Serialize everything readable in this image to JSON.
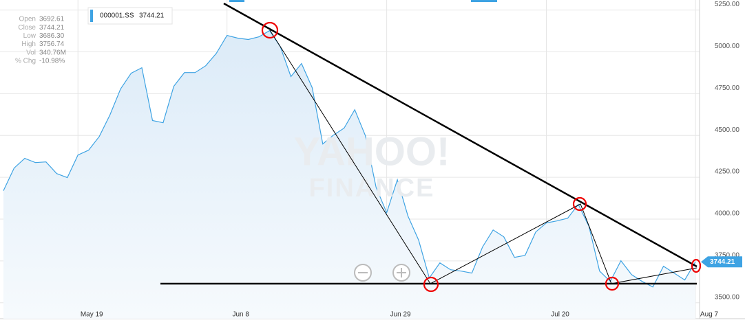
{
  "chart_data": {
    "type": "line",
    "quote": [
      {
        "label": "Open",
        "value": "3692.61"
      },
      {
        "label": "Close",
        "value": "3744.21"
      },
      {
        "label": "Low",
        "value": "3686.30"
      },
      {
        "label": "High",
        "value": "3756.74"
      },
      {
        "label": "Vol",
        "value": "340.76M"
      },
      {
        "label": "% Chg",
        "value": "-10.98%"
      }
    ],
    "watermark": [
      "YAHOO!",
      "FINANCE"
    ],
    "categories": [
      null,
      null,
      null,
      null,
      null,
      null,
      null,
      "May 19",
      null,
      null,
      null,
      null,
      null,
      null,
      null,
      null,
      null,
      null,
      null,
      null,
      null,
      "Jun 8",
      null,
      null,
      null,
      null,
      null,
      null,
      null,
      null,
      null,
      null,
      null,
      null,
      null,
      null,
      "Jun 29",
      null,
      null,
      null,
      null,
      null,
      null,
      null,
      null,
      null,
      null,
      null,
      null,
      null,
      null,
      "Jul 20",
      null,
      null,
      null,
      null,
      null,
      null,
      null,
      null,
      null,
      null,
      null,
      null,
      null,
      "Aug 7"
    ],
    "series": [
      {
        "name": "000001.SS",
        "color": "#3ea3e3",
        "values": [
          4170,
          4305,
          4363,
          4338,
          4342,
          4272,
          4248,
          4383,
          4412,
          4494,
          4622,
          4778,
          4872,
          4905,
          4589,
          4576,
          4794,
          4876,
          4876,
          4917,
          4991,
          5098,
          5082,
          5074,
          5090,
          5127,
          5032,
          4852,
          4930,
          4786,
          4449,
          4502,
          4544,
          4654,
          4498,
          4190,
          4038,
          4235,
          4018,
          3874,
          3648,
          3738,
          3697,
          3689,
          3677,
          3833,
          3935,
          3894,
          3771,
          3783,
          3923,
          3977,
          3989,
          4005,
          4088,
          3956,
          3689,
          3627,
          3751,
          3668,
          3627,
          3594,
          3718,
          3677,
          3636,
          3744.21
        ]
      }
    ],
    "ylim": [
      3470,
      5310
    ],
    "yticks": [
      {
        "value": 3500,
        "label": "3500.00"
      },
      {
        "value": 3750,
        "label": "3750.00"
      },
      {
        "value": 4000,
        "label": "4000.00"
      },
      {
        "value": 4250,
        "label": "4250.00"
      },
      {
        "value": 4500,
        "label": "4500.00"
      },
      {
        "value": 4750,
        "label": "4750.00"
      },
      {
        "value": 5000,
        "label": "5000.00"
      },
      {
        "value": 5250,
        "label": "5250.00"
      }
    ],
    "grid": true
  }
}
